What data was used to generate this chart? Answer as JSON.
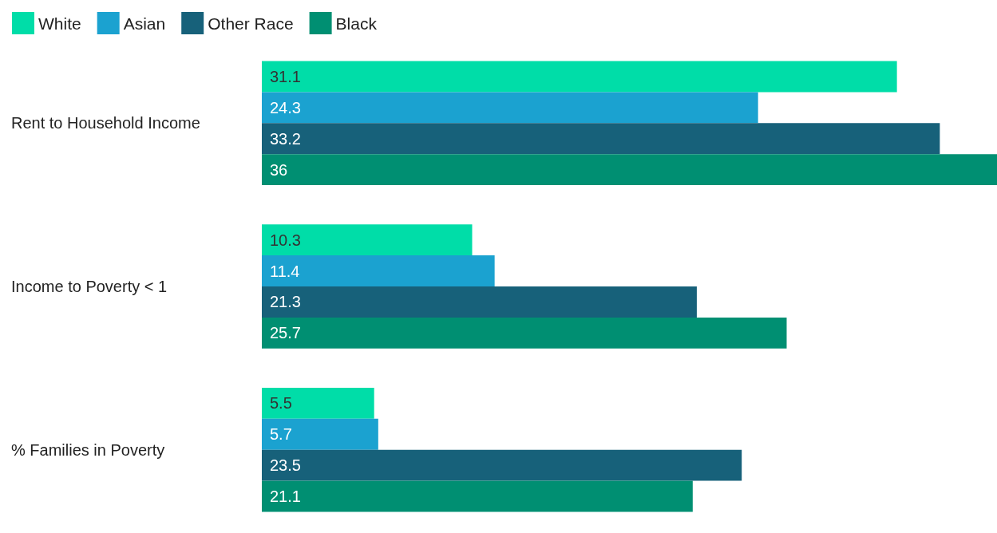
{
  "chart_data": {
    "type": "bar",
    "orientation": "horizontal",
    "categories": [
      "Rent to Household Income",
      "Income to Poverty < 1",
      "% Families in Poverty"
    ],
    "series": [
      {
        "name": "White",
        "color": "#00dda8",
        "values": [
          31.1,
          10.3,
          5.5
        ]
      },
      {
        "name": "Asian",
        "color": "#1ba2d0",
        "values": [
          24.3,
          11.4,
          5.7
        ]
      },
      {
        "name": "Other Race",
        "color": "#17617a",
        "values": [
          33.2,
          21.3,
          23.5
        ]
      },
      {
        "name": "Black",
        "color": "#008f72",
        "values": [
          36,
          25.7,
          21.1
        ]
      }
    ],
    "data_labels": true,
    "legend": "top left"
  }
}
